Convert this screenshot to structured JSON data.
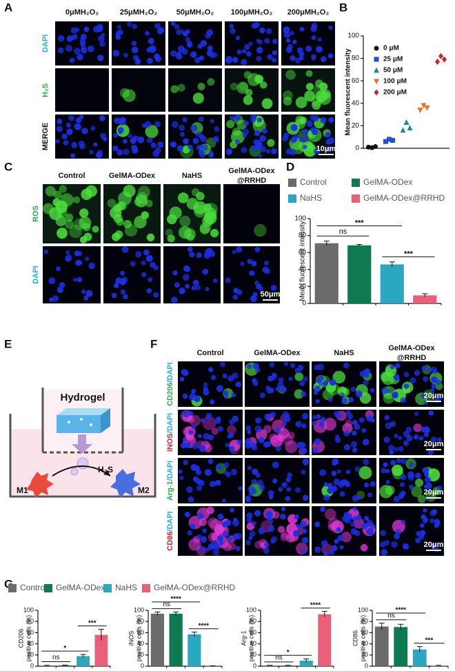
{
  "panels": [
    "A",
    "B",
    "C",
    "D",
    "E",
    "F",
    "G"
  ],
  "panel_a": {
    "columns": [
      "0μMH₂O₂",
      "25μMH₂O₂",
      "50μMH₂O₂",
      "100μMH₂O₂",
      "200μMH₂O₂"
    ],
    "rows": [
      "DAPI",
      "H₂S",
      "MERGE"
    ],
    "scale_bar": "10μm"
  },
  "panel_c": {
    "columns": [
      [
        "Control"
      ],
      [
        "GelMA-ODex"
      ],
      [
        "NaHS"
      ],
      [
        "GelMA-ODex",
        "@RRHD"
      ]
    ],
    "rows": [
      "ROS",
      "DAPI"
    ],
    "scale_bar": "50μm"
  },
  "legend_d": {
    "names": [
      "Control",
      "GelMA-ODex",
      "NaHS",
      "GelMA-ODex@RRHD"
    ],
    "colors": [
      "#6b6b6b",
      "#0f7a52",
      "#2aa8c0",
      "#e8607a"
    ]
  },
  "panel_e": {
    "hydrogel": "Hydrogel",
    "gas": "H₂S",
    "m1": "M1",
    "m2": "M2"
  },
  "panel_f": {
    "columns": [
      [
        "Control"
      ],
      [
        "GelMA-ODex"
      ],
      [
        "NaHS"
      ],
      [
        "GelMA-ODex",
        "@RRHD"
      ]
    ],
    "rows": [
      {
        "marker": "CD206",
        "stain": "/DAPI"
      },
      {
        "marker": "iNOS",
        "stain": "/DAPI"
      },
      {
        "marker": "Arg-1",
        "stain": "/DAPI"
      },
      {
        "marker": "CD86",
        "stain": "/DAPI"
      }
    ],
    "scale_bar": "20μm"
  },
  "legend_g": {
    "names": [
      "Control",
      "GelMA-ODex",
      "NaHS",
      "GelMA-ODex@RRHD"
    ],
    "colors": [
      "#6b6b6b",
      "#0f7a52",
      "#2aa8c0",
      "#e8607a"
    ]
  },
  "chart_data": [
    {
      "type": "scatter",
      "ylabel": "Mean fluorescent intensity",
      "categories": [
        null,
        null,
        null,
        null,
        null
      ],
      "ylim": [
        0,
        100
      ],
      "yticks": [
        0,
        20,
        40,
        60,
        80,
        100
      ],
      "legend": "upper left",
      "series": [
        {
          "name": "0 μM",
          "color": "#111111",
          "marker": "circle",
          "values": [
            1,
            0.5,
            1.5
          ]
        },
        {
          "name": "25 μM",
          "color": "#1f4fd6",
          "marker": "square",
          "values": [
            6,
            8,
            7
          ]
        },
        {
          "name": "50 μM",
          "color": "#1a8a9a",
          "marker": "triangle",
          "values": [
            16,
            23,
            18
          ]
        },
        {
          "name": "100 μM",
          "color": "#e8731a",
          "marker": "triangle-down",
          "values": [
            34,
            38,
            36
          ]
        },
        {
          "name": "200 μM",
          "color": "#cc2222",
          "marker": "diamond",
          "values": [
            77,
            82,
            79
          ]
        }
      ]
    },
    {
      "type": "bar",
      "ylabel": [
        "Mean fluorescent intensity"
      ],
      "values": [
        71,
        68.5,
        46,
        9.5
      ],
      "errors": [
        2.5,
        1,
        3,
        2
      ],
      "ylim": [
        0,
        100
      ],
      "yticks": [
        0,
        20,
        40,
        60,
        80,
        100
      ],
      "annotations": [
        {
          "pair": [
            0,
            1
          ],
          "label": "ns"
        },
        {
          "pair": [
            0,
            2
          ],
          "label": "***"
        },
        {
          "pair": [
            2,
            3
          ],
          "label": "***"
        }
      ]
    },
    {
      "type": "bar",
      "ylabel": [
        "CD206",
        "positive cells (%)"
      ],
      "values": [
        1,
        1.5,
        18,
        56
      ],
      "errors": [
        0.5,
        0.5,
        3,
        10
      ],
      "ylim": [
        0,
        100
      ],
      "yticks": [
        0,
        20,
        40,
        60,
        80,
        100
      ],
      "annotations": [
        {
          "pair": [
            0,
            1
          ],
          "label": "ns"
        },
        {
          "pair": [
            0,
            2
          ],
          "label": "*"
        },
        {
          "pair": [
            2,
            3
          ],
          "label": "***"
        }
      ]
    },
    {
      "type": "bar",
      "ylabel": [
        "iNOS",
        "positive cells (%)"
      ],
      "values": [
        94,
        94,
        57,
        0.5
      ],
      "errors": [
        3,
        3,
        4,
        0.3
      ],
      "ylim": [
        0,
        100
      ],
      "yticks": [
        0,
        20,
        40,
        60,
        80,
        100
      ],
      "annotations": [
        {
          "pair": [
            0,
            1
          ],
          "label": "ns"
        },
        {
          "pair": [
            0,
            2
          ],
          "label": "****"
        },
        {
          "pair": [
            2,
            3
          ],
          "label": "****"
        }
      ]
    },
    {
      "type": "bar",
      "ylabel": [
        "Arg-1",
        "positive cells (%)"
      ],
      "values": [
        1,
        1,
        10,
        93
      ],
      "errors": [
        0.5,
        0.5,
        3,
        5
      ],
      "ylim": [
        0,
        100
      ],
      "yticks": [
        0,
        20,
        40,
        60,
        80,
        100
      ],
      "annotations": [
        {
          "pair": [
            0,
            1
          ],
          "label": "ns"
        },
        {
          "pair": [
            0,
            2
          ],
          "label": "*"
        },
        {
          "pair": [
            2,
            3
          ],
          "label": "****"
        }
      ]
    },
    {
      "type": "bar",
      "ylabel": [
        "CD86",
        "positive cells (%)"
      ],
      "values": [
        71,
        70,
        30,
        1
      ],
      "errors": [
        6,
        5,
        5,
        0.5
      ],
      "ylim": [
        0,
        100
      ],
      "yticks": [
        0,
        20,
        40,
        60,
        80,
        100
      ],
      "annotations": [
        {
          "pair": [
            0,
            1
          ],
          "label": "ns"
        },
        {
          "pair": [
            0,
            2
          ],
          "label": "****"
        },
        {
          "pair": [
            2,
            3
          ],
          "label": "***"
        }
      ]
    }
  ]
}
